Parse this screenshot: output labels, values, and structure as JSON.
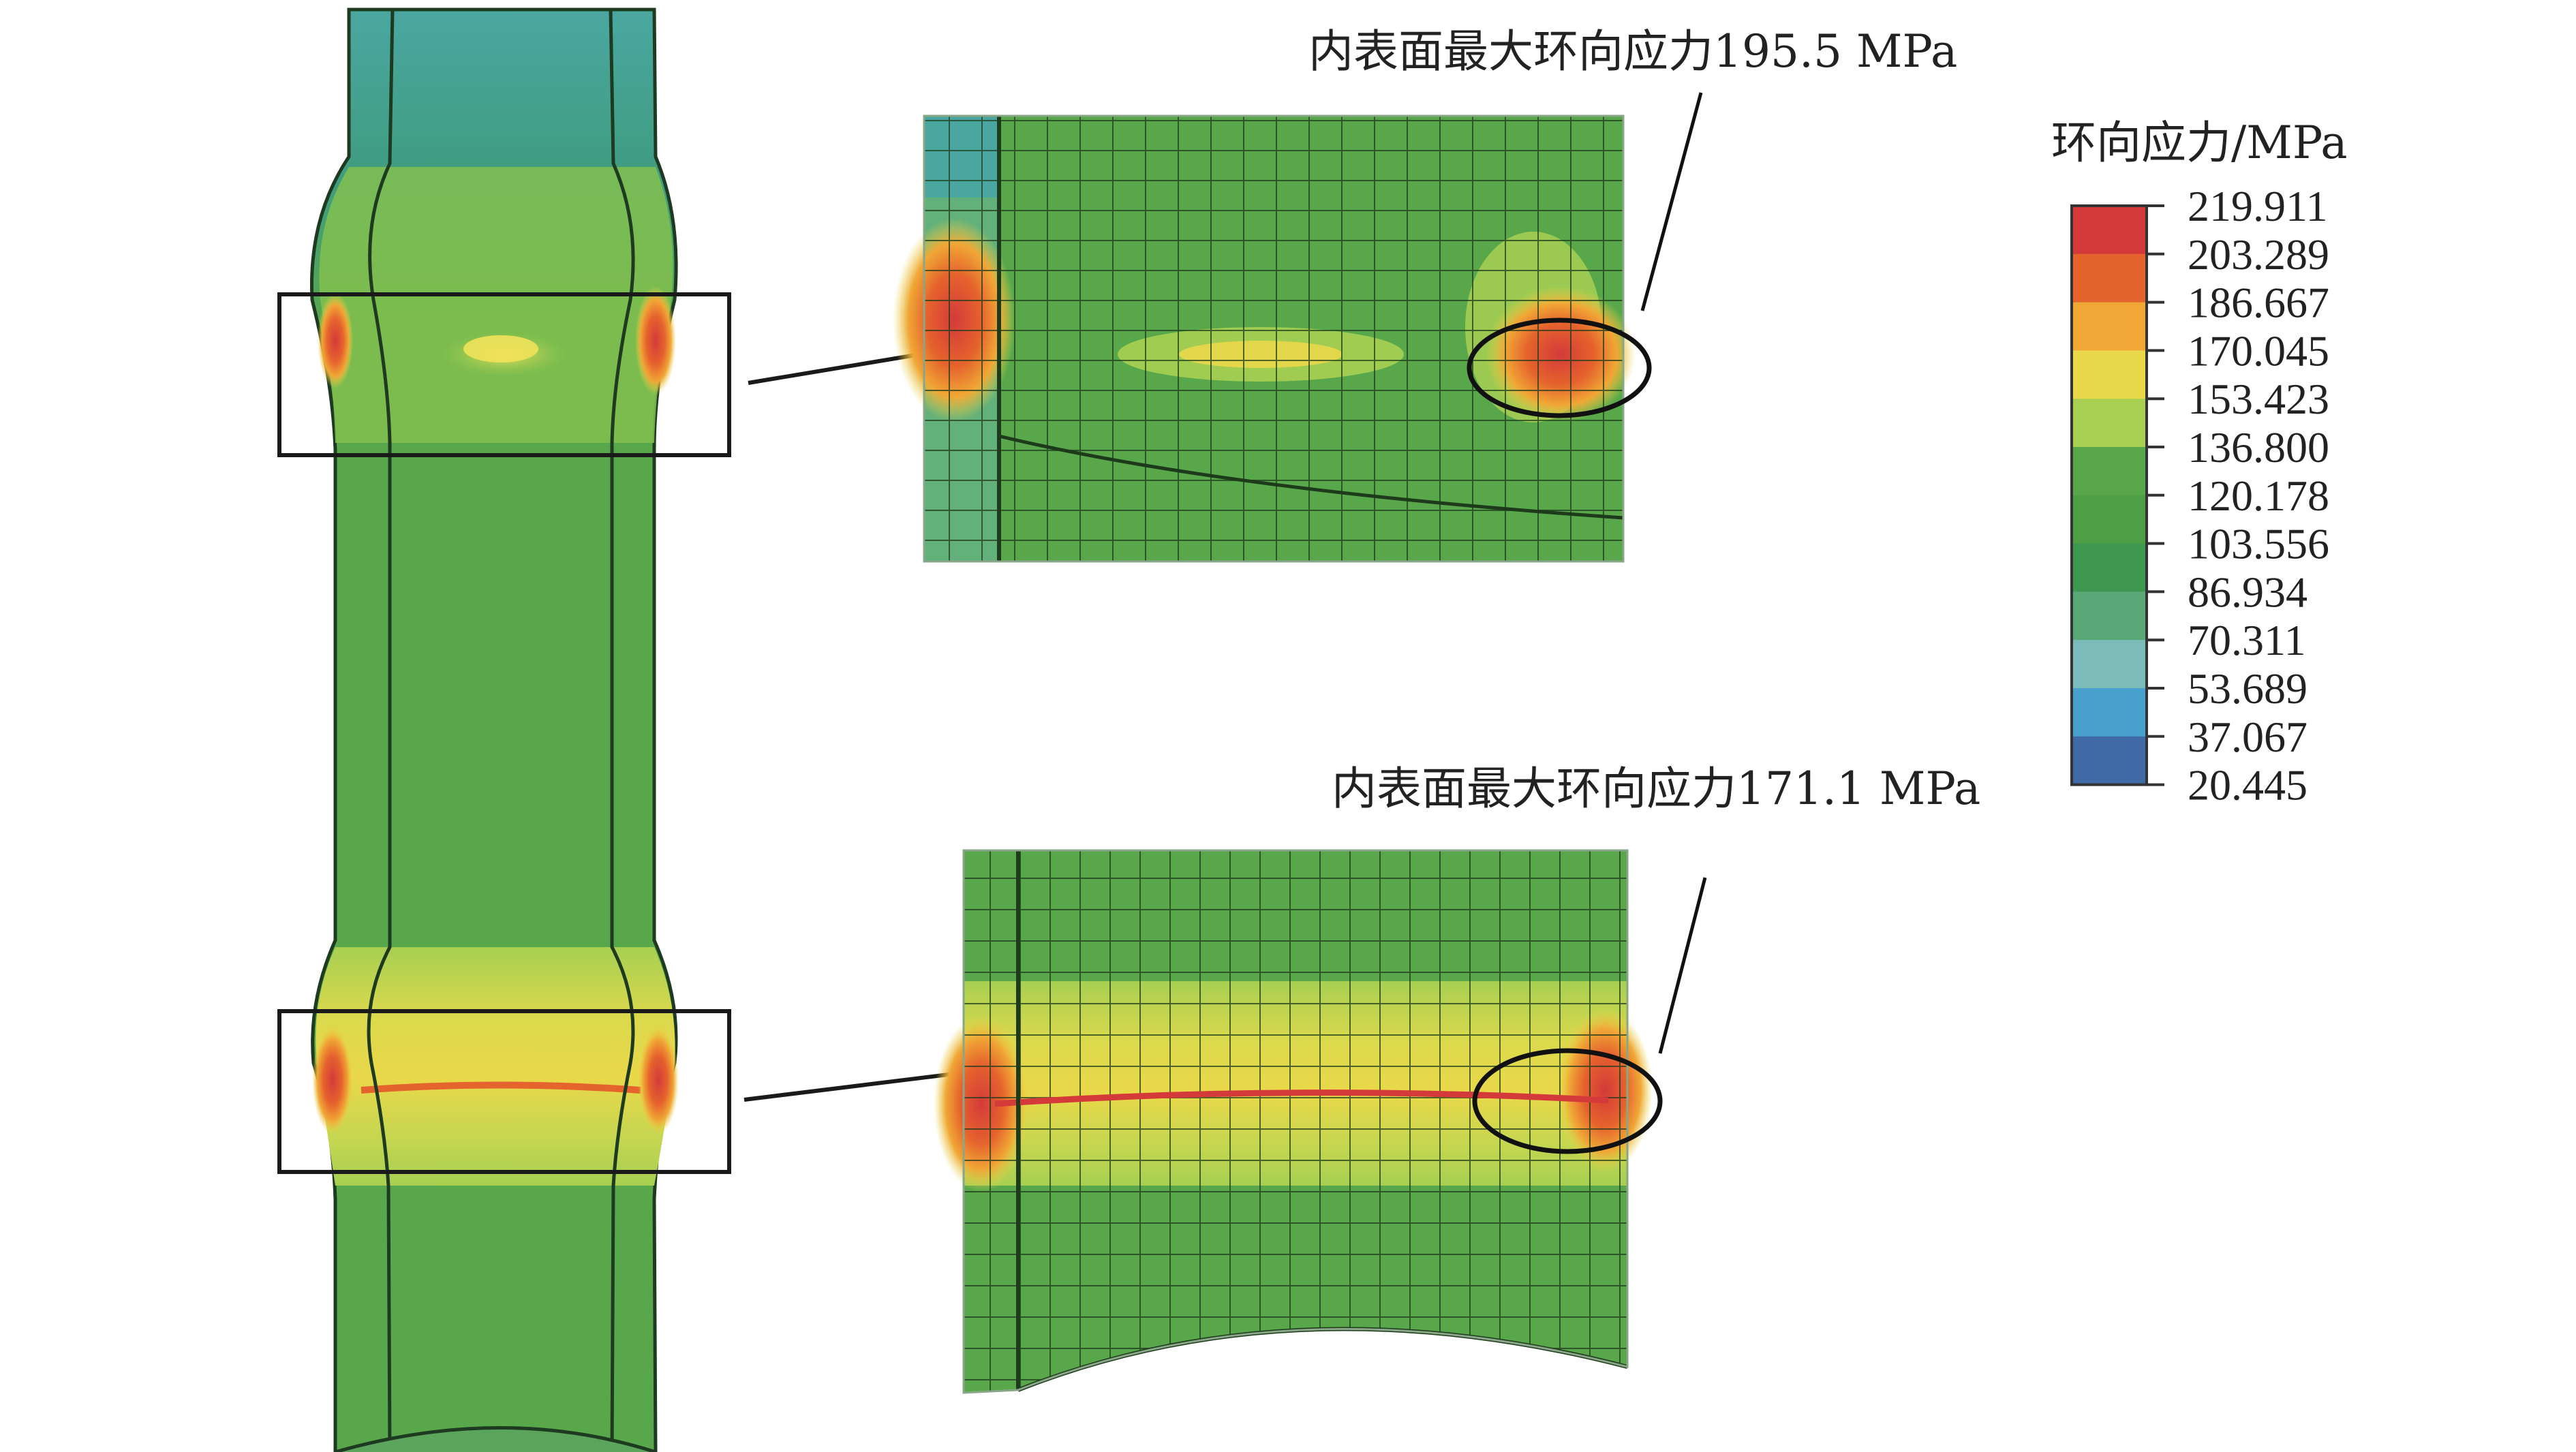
{
  "annotations": {
    "upper": "内表面最大环向应力195.5 MPa",
    "lower": "内表面最大环向应力171.1 MPa"
  },
  "legend": {
    "title": "环向应力/MPa",
    "values": [
      "219.911",
      "203.289",
      "186.667",
      "170.045",
      "153.423",
      "136.800",
      "120.178",
      "103.556",
      "86.934",
      "70.311",
      "53.689",
      "37.067",
      "20.445"
    ],
    "colors": [
      "#d43a3a",
      "#e5632d",
      "#f0a736",
      "#e9d84a",
      "#a8cf52",
      "#58a84b",
      "#4d9e45",
      "#3f9850",
      "#5aa877",
      "#7cbcb8",
      "#47a1cc",
      "#3f6aa5",
      "#2b3c86"
    ]
  }
}
